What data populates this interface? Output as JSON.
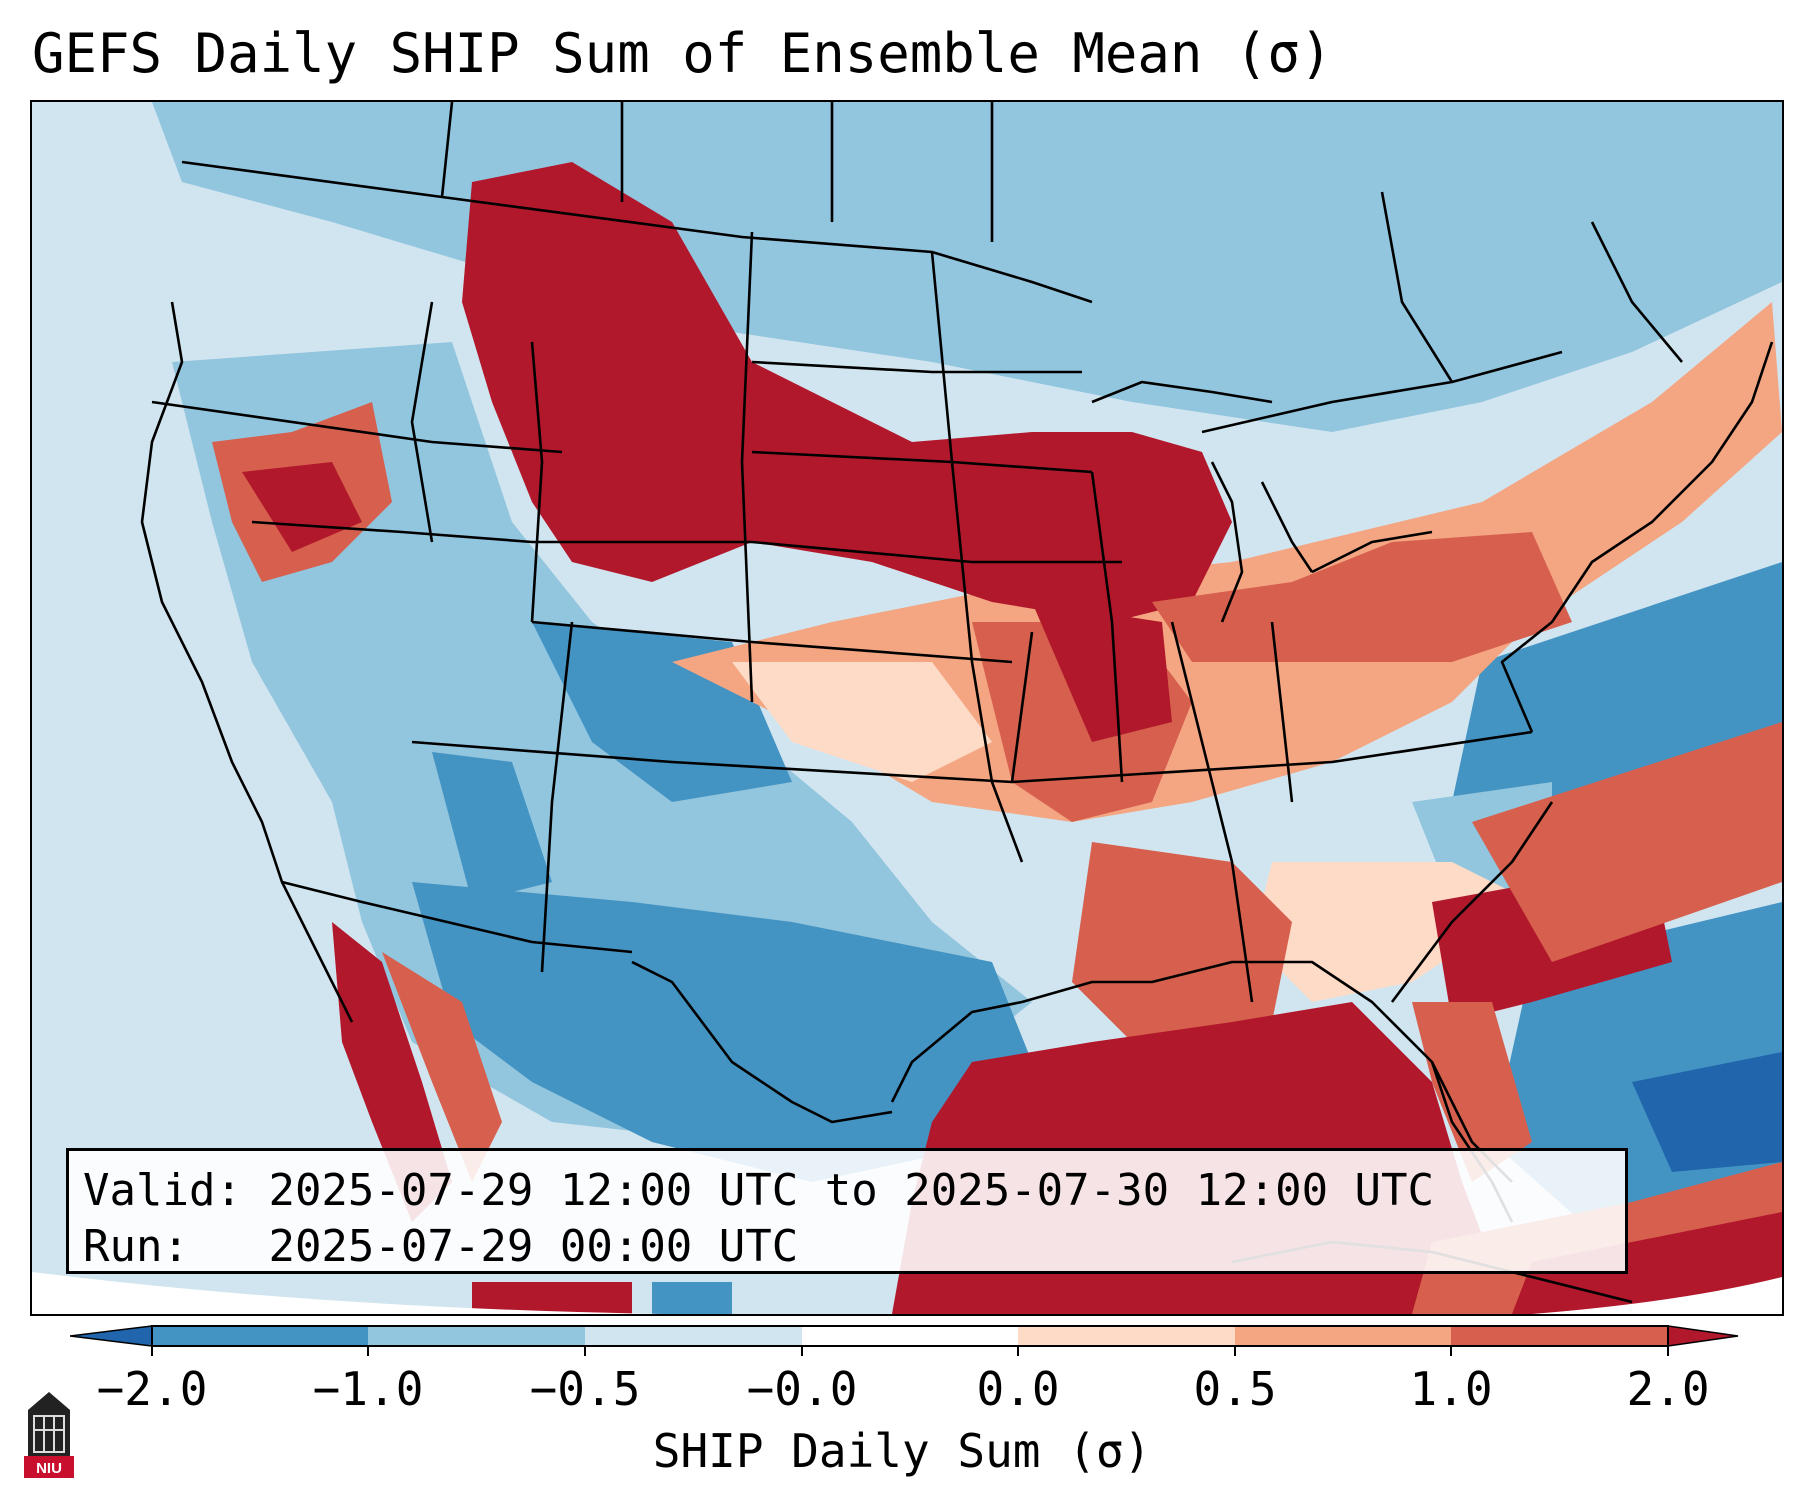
{
  "title": "GEFS Daily SHIP Sum of Ensemble Mean (σ)",
  "info": {
    "valid_label": "Valid:",
    "valid_value": "2025-07-29 12:00 UTC to 2025-07-30 12:00 UTC",
    "run_label": "Run:",
    "run_value": "2025-07-29 00:00 UTC"
  },
  "colorbar": {
    "label": "SHIP Daily Sum (σ)",
    "ticks": [
      "−2.0",
      "−1.0",
      "−0.5",
      "−0.0",
      "0.0",
      "0.5",
      "1.0",
      "2.0"
    ],
    "colors": [
      "#2166ac",
      "#4393c3",
      "#92c5de",
      "#d1e5f0",
      "#fddbc7",
      "#f4a582",
      "#d6604d",
      "#b2182b"
    ]
  },
  "legend_colors": {
    "strong_negative": "#2166ac",
    "negative": "#4393c3",
    "weak_negative": "#92c5de",
    "near_zero_negative": "#d1e5f0",
    "near_zero_positive": "#fddbc7",
    "weak_positive": "#f4a582",
    "positive": "#d6604d",
    "strong_positive": "#b2182b"
  },
  "logo": {
    "text": "NIU",
    "color": "#c8102e"
  }
}
